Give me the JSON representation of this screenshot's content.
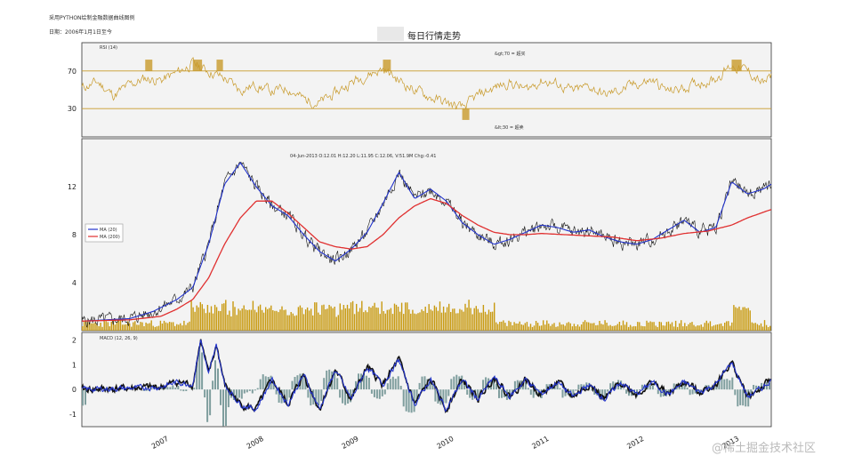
{
  "header": {
    "line1": "采用PYTHON绘制金融数据曲线图例",
    "line2": "日期：2006年1月1日至今",
    "title": "每日行情走势"
  },
  "watermark": "@稀土掘金技术社区",
  "colors": {
    "rsi": "#c89a2a",
    "price": "#111111",
    "ma20": "#2233cc",
    "ma200": "#e03030",
    "volume": "#c89a10",
    "macd": "#111111",
    "signal": "#2233cc",
    "hist": "#7f9e9e",
    "panel_bg": "#f3f3f3"
  },
  "chart_data": [
    {
      "type": "line",
      "name": "rsi-panel",
      "panel_label": "RSI (14)",
      "series": [
        {
          "name": "RSI (14)"
        }
      ],
      "ylim": [
        0,
        100
      ],
      "yticks": [
        30,
        70
      ],
      "hlines": [
        30,
        70
      ],
      "annotations": [
        "&gt;70 = 超买",
        "&lt;30 = 超卖"
      ],
      "x_range": [
        "2006-03",
        "2013-06"
      ],
      "points": [
        [
          "2006-03",
          52
        ],
        [
          "2006-05",
          58
        ],
        [
          "2006-07",
          44
        ],
        [
          "2006-09",
          55
        ],
        [
          "2006-11",
          62
        ],
        [
          "2007-01",
          60
        ],
        [
          "2007-03",
          68
        ],
        [
          "2007-05",
          78
        ],
        [
          "2007-07",
          70
        ],
        [
          "2007-09",
          62
        ],
        [
          "2007-11",
          50
        ],
        [
          "2008-01",
          55
        ],
        [
          "2008-03",
          48
        ],
        [
          "2008-05",
          52
        ],
        [
          "2008-07",
          40
        ],
        [
          "2008-09",
          36
        ],
        [
          "2008-11",
          46
        ],
        [
          "2009-01",
          58
        ],
        [
          "2009-03",
          66
        ],
        [
          "2009-05",
          72
        ],
        [
          "2009-07",
          60
        ],
        [
          "2009-09",
          50
        ],
        [
          "2009-11",
          42
        ],
        [
          "2010-01",
          36
        ],
        [
          "2010-03",
          30
        ],
        [
          "2010-05",
          44
        ],
        [
          "2010-07",
          52
        ],
        [
          "2010-09",
          58
        ],
        [
          "2010-11",
          50
        ],
        [
          "2011-01",
          60
        ],
        [
          "2011-03",
          56
        ],
        [
          "2011-05",
          48
        ],
        [
          "2011-07",
          54
        ],
        [
          "2011-09",
          44
        ],
        [
          "2011-11",
          50
        ],
        [
          "2012-01",
          56
        ],
        [
          "2012-03",
          60
        ],
        [
          "2012-05",
          48
        ],
        [
          "2012-07",
          52
        ],
        [
          "2012-09",
          58
        ],
        [
          "2012-11",
          62
        ],
        [
          "2013-01",
          76
        ],
        [
          "2013-03",
          70
        ],
        [
          "2013-05",
          56
        ],
        [
          "2013-06",
          64
        ]
      ]
    },
    {
      "type": "line",
      "name": "price-panel",
      "info_text": "04-Jun-2013 O:12.01 H:12.20 L:11.95 C:12.06, V:51.9M Chg:-0.41",
      "legend": [
        "MA (20)",
        "MA (200)"
      ],
      "legend_position": "left",
      "ylim": [
        0,
        16
      ],
      "yticks": [
        4,
        8,
        12
      ],
      "series": [
        {
          "name": "MA (20)",
          "points": [
            [
              "2006-03",
              0.8
            ],
            [
              "2006-06",
              0.9
            ],
            [
              "2006-09",
              1.0
            ],
            [
              "2006-12",
              1.6
            ],
            [
              "2007-03",
              2.6
            ],
            [
              "2007-05",
              3.6
            ],
            [
              "2007-07",
              7.2
            ],
            [
              "2007-09",
              12.2
            ],
            [
              "2007-11",
              14.0
            ],
            [
              "2008-01",
              12.0
            ],
            [
              "2008-03",
              10.4
            ],
            [
              "2008-05",
              9.6
            ],
            [
              "2008-07",
              8.0
            ],
            [
              "2008-09",
              6.6
            ],
            [
              "2008-11",
              5.8
            ],
            [
              "2009-01",
              6.8
            ],
            [
              "2009-03",
              8.2
            ],
            [
              "2009-05",
              10.6
            ],
            [
              "2009-07",
              13.2
            ],
            [
              "2009-09",
              11.0
            ],
            [
              "2009-11",
              11.8
            ],
            [
              "2010-01",
              10.8
            ],
            [
              "2010-03",
              9.0
            ],
            [
              "2010-05",
              8.0
            ],
            [
              "2010-07",
              7.2
            ],
            [
              "2010-09",
              7.6
            ],
            [
              "2010-11",
              8.2
            ],
            [
              "2011-01",
              8.8
            ],
            [
              "2011-03",
              8.6
            ],
            [
              "2011-05",
              8.2
            ],
            [
              "2011-07",
              8.4
            ],
            [
              "2011-09",
              7.8
            ],
            [
              "2011-11",
              7.4
            ],
            [
              "2012-01",
              7.2
            ],
            [
              "2012-03",
              7.6
            ],
            [
              "2012-05",
              8.4
            ],
            [
              "2012-07",
              9.2
            ],
            [
              "2012-09",
              8.2
            ],
            [
              "2012-11",
              8.6
            ],
            [
              "2013-01",
              12.4
            ],
            [
              "2013-03",
              11.4
            ],
            [
              "2013-05",
              11.8
            ],
            [
              "2013-06",
              12.2
            ]
          ]
        },
        {
          "name": "MA (200)",
          "points": [
            [
              "2006-03",
              0.8
            ],
            [
              "2006-09",
              0.9
            ],
            [
              "2007-01",
              1.2
            ],
            [
              "2007-03",
              1.8
            ],
            [
              "2007-05",
              2.6
            ],
            [
              "2007-07",
              4.4
            ],
            [
              "2007-09",
              7.2
            ],
            [
              "2007-11",
              9.4
            ],
            [
              "2008-01",
              10.8
            ],
            [
              "2008-03",
              10.8
            ],
            [
              "2008-05",
              9.8
            ],
            [
              "2008-07",
              8.6
            ],
            [
              "2008-09",
              7.4
            ],
            [
              "2008-11",
              7.0
            ],
            [
              "2009-01",
              6.8
            ],
            [
              "2009-03",
              7.0
            ],
            [
              "2009-05",
              8.0
            ],
            [
              "2009-07",
              9.4
            ],
            [
              "2009-09",
              10.4
            ],
            [
              "2009-11",
              11.0
            ],
            [
              "2010-01",
              10.6
            ],
            [
              "2010-03",
              9.6
            ],
            [
              "2010-05",
              8.8
            ],
            [
              "2010-07",
              8.2
            ],
            [
              "2010-09",
              8.0
            ],
            [
              "2010-11",
              8.0
            ],
            [
              "2011-01",
              8.1
            ],
            [
              "2011-04",
              8.0
            ],
            [
              "2011-07",
              7.9
            ],
            [
              "2011-10",
              7.8
            ],
            [
              "2012-01",
              7.5
            ],
            [
              "2012-04",
              7.7
            ],
            [
              "2012-07",
              8.1
            ],
            [
              "2012-10",
              8.3
            ],
            [
              "2013-01",
              8.8
            ],
            [
              "2013-03",
              9.4
            ],
            [
              "2013-06",
              10.1
            ]
          ]
        }
      ]
    },
    {
      "type": "line",
      "name": "macd-panel",
      "panel_label": "MACD (12, 26, 9)",
      "ylim": [
        -1.5,
        2.3
      ],
      "yticks": [
        -1,
        0,
        1,
        2
      ],
      "x_range": [
        "2006-03",
        "2013-06"
      ],
      "points": [
        [
          "2006-03",
          0.0
        ],
        [
          "2006-09",
          0.05
        ],
        [
          "2007-01",
          0.1
        ],
        [
          "2007-03",
          0.3
        ],
        [
          "2007-05",
          0.2
        ],
        [
          "2007-06",
          2.0
        ],
        [
          "2007-07",
          0.6
        ],
        [
          "2007-08",
          1.8
        ],
        [
          "2007-09",
          0.2
        ],
        [
          "2007-11",
          -0.6
        ],
        [
          "2008-01",
          -0.8
        ],
        [
          "2008-03",
          0.4
        ],
        [
          "2008-05",
          -0.6
        ],
        [
          "2008-07",
          0.6
        ],
        [
          "2008-09",
          -0.8
        ],
        [
          "2008-11",
          0.8
        ],
        [
          "2009-01",
          -0.4
        ],
        [
          "2009-03",
          0.9
        ],
        [
          "2009-05",
          0.2
        ],
        [
          "2009-07",
          1.2
        ],
        [
          "2009-09",
          -0.6
        ],
        [
          "2009-11",
          0.4
        ],
        [
          "2010-01",
          -0.8
        ],
        [
          "2010-03",
          0.4
        ],
        [
          "2010-05",
          -0.4
        ],
        [
          "2010-07",
          0.5
        ],
        [
          "2010-09",
          -0.3
        ],
        [
          "2010-11",
          0.4
        ],
        [
          "2011-01",
          -0.2
        ],
        [
          "2011-03",
          0.3
        ],
        [
          "2011-05",
          -0.3
        ],
        [
          "2011-07",
          0.2
        ],
        [
          "2011-09",
          -0.4
        ],
        [
          "2011-11",
          0.3
        ],
        [
          "2012-01",
          -0.2
        ],
        [
          "2012-03",
          0.3
        ],
        [
          "2012-05",
          -0.2
        ],
        [
          "2012-07",
          0.3
        ],
        [
          "2012-09",
          -0.1
        ],
        [
          "2012-11",
          0.2
        ],
        [
          "2013-01",
          1.1
        ],
        [
          "2013-03",
          -0.3
        ],
        [
          "2013-05",
          0.1
        ],
        [
          "2013-06",
          0.4
        ]
      ]
    },
    {
      "type": "line",
      "name": "x-axis",
      "xticks": [
        "2007",
        "2008",
        "2009",
        "2010",
        "2011",
        "2012",
        "2013"
      ]
    }
  ]
}
